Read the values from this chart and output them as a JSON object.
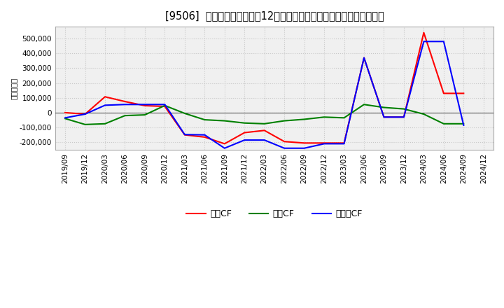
{
  "title": "[9506]  キャッシュフローの12か月移動合計の対前年同期増減額の推移",
  "ylabel": "（百万円）",
  "x_labels": [
    "2019/09",
    "2019/12",
    "2020/03",
    "2020/06",
    "2020/09",
    "2020/12",
    "2021/03",
    "2021/06",
    "2021/09",
    "2021/12",
    "2022/03",
    "2022/06",
    "2022/09",
    "2022/12",
    "2023/03",
    "2023/06",
    "2023/09",
    "2023/12",
    "2024/03",
    "2024/06",
    "2024/09",
    "2024/12"
  ],
  "operating_cf": [
    0,
    -10000,
    107000,
    75000,
    47000,
    42000,
    -150000,
    -165000,
    -210000,
    -135000,
    -120000,
    -195000,
    -205000,
    -205000,
    -205000,
    370000,
    -30000,
    -30000,
    540000,
    130000,
    130000,
    null
  ],
  "investing_cf": [
    -40000,
    -80000,
    -75000,
    -20000,
    -15000,
    48000,
    -5000,
    -48000,
    -55000,
    -70000,
    -75000,
    -55000,
    -45000,
    -30000,
    -35000,
    55000,
    35000,
    25000,
    -10000,
    -75000,
    -75000,
    null
  ],
  "free_cf": [
    -35000,
    -10000,
    50000,
    55000,
    55000,
    55000,
    -148000,
    -150000,
    -240000,
    -185000,
    -185000,
    -240000,
    -240000,
    -210000,
    -210000,
    370000,
    -30000,
    -30000,
    480000,
    480000,
    -85000,
    null
  ],
  "operating_color": "#ff0000",
  "investing_color": "#008000",
  "free_color": "#0000ff",
  "bg_color": "#ffffff",
  "plot_bg_color": "#f0f0f0",
  "ylim": [
    -250000,
    580000
  ],
  "yticks": [
    -200000,
    -100000,
    0,
    100000,
    200000,
    300000,
    400000,
    500000
  ],
  "grid_color": "#c8c8c8",
  "title_fontsize": 10.5,
  "axis_fontsize": 7.5,
  "legend_fontsize": 9
}
